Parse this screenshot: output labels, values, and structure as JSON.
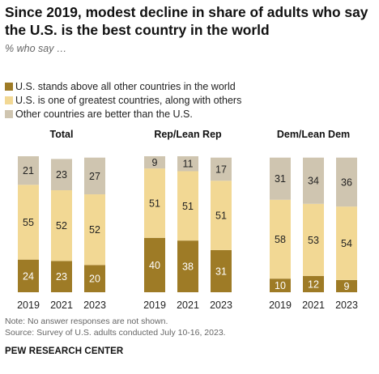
{
  "title": "Since 2019, modest decline in share of adults who say the U.S. is the best country in the world",
  "subtitle": "% who say …",
  "legend": [
    {
      "label": "U.S. stands above all other countries in the world",
      "color": "#9e7b26"
    },
    {
      "label": "U.S. is one of greatest countries, along with others",
      "color": "#f2d894"
    },
    {
      "label": "Other countries are better than the U.S.",
      "color": "#cfc5b0"
    }
  ],
  "chart_data": {
    "type": "bar",
    "stacked": true,
    "categories": [
      "2019",
      "2021",
      "2023"
    ],
    "panels": [
      {
        "title": "Total",
        "series": [
          {
            "name": "U.S. stands above all other countries in the world",
            "values": [
              24,
              23,
              20
            ]
          },
          {
            "name": "U.S. is one of greatest countries, along with others",
            "values": [
              55,
              52,
              52
            ]
          },
          {
            "name": "Other countries are better than the U.S.",
            "values": [
              21,
              23,
              27
            ]
          }
        ]
      },
      {
        "title": "Rep/Lean Rep",
        "series": [
          {
            "name": "U.S. stands above all other countries in the world",
            "values": [
              40,
              38,
              31
            ]
          },
          {
            "name": "U.S. is one of greatest countries, along with others",
            "values": [
              51,
              51,
              51
            ]
          },
          {
            "name": "Other countries are better than the U.S.",
            "values": [
              9,
              11,
              17
            ]
          }
        ]
      },
      {
        "title": "Dem/Lean Dem",
        "series": [
          {
            "name": "U.S. stands above all other countries in the world",
            "values": [
              10,
              12,
              9
            ]
          },
          {
            "name": "U.S. is one of greatest countries, along with others",
            "values": [
              58,
              53,
              54
            ]
          },
          {
            "name": "Other countries are better than the U.S.",
            "values": [
              31,
              34,
              36
            ]
          }
        ]
      }
    ],
    "colors": [
      "#9e7b26",
      "#f2d894",
      "#cfc5b0"
    ],
    "label_colors": [
      "#ffffff",
      "#222222",
      "#222222"
    ]
  },
  "notes": {
    "note": "Note: No answer responses are not shown.",
    "source": "Source: Survey of U.S. adults conducted July 10-16, 2023.",
    "org": "PEW RESEARCH CENTER"
  }
}
